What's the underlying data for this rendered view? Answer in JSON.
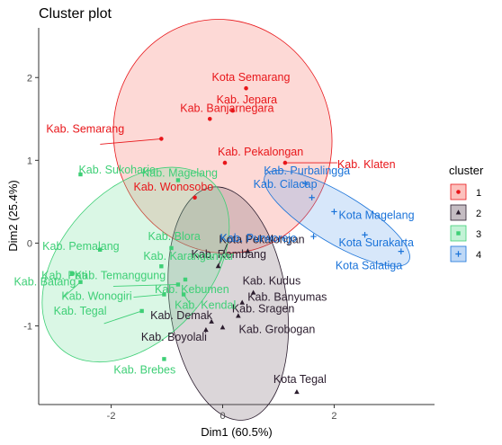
{
  "chart_data": {
    "type": "scatter",
    "title": "Cluster plot",
    "xlabel": "Dim1 (60.5%)",
    "ylabel": "Dim2 (25.4%)",
    "xlim": [
      -3.3,
      3.8
    ],
    "ylim": [
      -1.95,
      2.6
    ],
    "xticks": [
      -2,
      0,
      2
    ],
    "yticks": [
      -1,
      0,
      1,
      2
    ],
    "grid": false,
    "legend": {
      "title": "cluster",
      "position": "right",
      "labels": [
        "1",
        "2",
        "3",
        "4"
      ]
    },
    "clusters": [
      {
        "id": "1",
        "color": "#e8161a",
        "fill": "#f8766d",
        "marker": "circle",
        "ellipse": {
          "cx": 0.0,
          "cy": 1.29,
          "rx": 1.95,
          "ry": 1.42,
          "angle": -15
        },
        "points": [
          {
            "label": "Kota Semarang",
            "x": 0.42,
            "y": 1.87
          },
          {
            "label": "Kab. Jepara",
            "x": 0.18,
            "y": 1.6
          },
          {
            "label": "Kab. Banjarnegara",
            "x": -0.23,
            "y": 1.5
          },
          {
            "label": "Kab. Semarang",
            "x": -1.1,
            "y": 1.26
          },
          {
            "label": "Kab. Pekalongan",
            "x": 0.04,
            "y": 0.97
          },
          {
            "label": "Kab. Klaten",
            "x": 1.12,
            "y": 0.97
          },
          {
            "label": "Kab. Wonosobo",
            "x": -0.5,
            "y": 0.55
          }
        ]
      },
      {
        "id": "2",
        "color": "#2b1d2e",
        "fill": "#7c6a78",
        "marker": "triangle",
        "ellipse": {
          "cx": 0.1,
          "cy": -0.73,
          "rx": 1.05,
          "ry": 1.42,
          "angle": -8
        },
        "points": [
          {
            "label": "Kab. Rembang",
            "x": -0.08,
            "y": -0.28
          },
          {
            "label": "Kota Pekalongan",
            "x": 0.45,
            "y": -0.1
          },
          {
            "label": "Kab. Kudus",
            "x": 0.55,
            "y": -0.6
          },
          {
            "label": "Kab. Banyumas",
            "x": 0.35,
            "y": -0.72
          },
          {
            "label": "Kab. Demak",
            "x": -0.2,
            "y": -0.95
          },
          {
            "label": "Kab. Sragen",
            "x": 0.28,
            "y": -0.88
          },
          {
            "label": "Kab. Boyolali",
            "x": -0.3,
            "y": -1.05
          },
          {
            "label": "Kab. Grobogan",
            "x": 0.0,
            "y": -1.02
          },
          {
            "label": "Kota Tegal",
            "x": 1.33,
            "y": -1.8
          }
        ]
      },
      {
        "id": "3",
        "color": "#3ecf76",
        "fill": "#7be3a3",
        "marker": "square",
        "ellipse": {
          "cx": -1.56,
          "cy": -0.26,
          "rx": 2.02,
          "ry": 0.9,
          "angle": -48
        },
        "points": [
          {
            "label": "Kab. Sukoharjo",
            "x": -2.55,
            "y": 0.83
          },
          {
            "label": "Kab. Magelang",
            "x": -0.8,
            "y": 0.76
          },
          {
            "label": "Kab. Pemalang",
            "x": -2.2,
            "y": -0.08
          },
          {
            "label": "Kab. Blora",
            "x": -0.92,
            "y": -0.06
          },
          {
            "label": "Kab. Pati",
            "x": -2.7,
            "y": -0.37
          },
          {
            "label": "Kab. Batang",
            "x": -2.55,
            "y": -0.47
          },
          {
            "label": "Kab. Karanganyar",
            "x": -1.1,
            "y": -0.28
          },
          {
            "label": "Kab. Temanggung",
            "x": -0.8,
            "y": -0.5
          },
          {
            "label": "Kab. Kebumen",
            "x": -0.67,
            "y": -0.44
          },
          {
            "label": "Kab. Wonogiri",
            "x": -1.05,
            "y": -0.62
          },
          {
            "label": "Kab. Kendal",
            "x": -0.7,
            "y": -0.62
          },
          {
            "label": "Kab. Tegal",
            "x": -1.45,
            "y": -0.82
          },
          {
            "label": "Kab. Brebes",
            "x": -1.05,
            "y": -1.4
          }
        ]
      },
      {
        "id": "4",
        "color": "#1a73d9",
        "fill": "#6fa8ec",
        "marker": "cross",
        "ellipse": {
          "cx": 2.05,
          "cy": 0.3,
          "rx": 1.5,
          "ry": 0.3,
          "angle": 31
        },
        "points": [
          {
            "label": "Kab. Purbalingga",
            "x": 1.48,
            "y": 0.72
          },
          {
            "label": "Kab. Cilacap",
            "x": 1.6,
            "y": 0.55
          },
          {
            "label": "Kota Magelang",
            "x": 2.0,
            "y": 0.38
          },
          {
            "label": "Kab. Purworejo",
            "x": 1.63,
            "y": 0.08
          },
          {
            "label": "Kota Surakarta",
            "x": 2.55,
            "y": 0.1
          },
          {
            "label": "Kota Salatiga",
            "x": 3.2,
            "y": -0.1
          }
        ]
      }
    ]
  }
}
